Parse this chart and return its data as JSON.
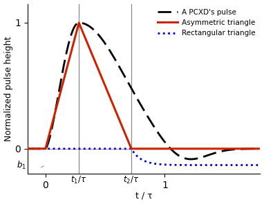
{
  "title": "",
  "xlabel": "t / τ",
  "ylabel": "Normalized pulse height",
  "xlim": [
    -0.15,
    1.8
  ],
  "ylim": [
    -0.2,
    1.15
  ],
  "t1": 0.28,
  "t2": 0.72,
  "b1": -0.13,
  "pcxd_color": "#000000",
  "asym_color": "#cc2200",
  "rect_color": "#0000cc",
  "legend_labels": [
    "A PCXD's pulse",
    "Asymmetric triangle",
    "Rectangular triangle"
  ],
  "t1_label": "$t_1/\\tau$",
  "t2_label": "$t_2/\\tau$",
  "b1_label": "$b_1$",
  "n_points": 2000
}
